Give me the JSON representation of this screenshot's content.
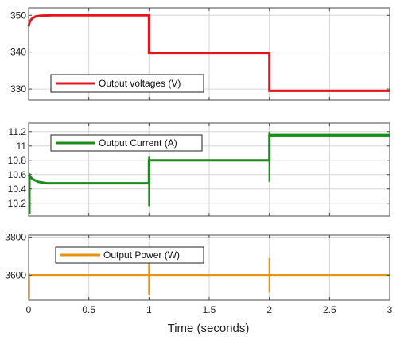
{
  "chart_data": [
    {
      "type": "line",
      "x_range": [
        0,
        3
      ],
      "ylim": [
        327,
        352
      ],
      "y_ticks": [
        330,
        340,
        350
      ],
      "grid": true,
      "legend_placement": "bottom-left",
      "color": "#e8141c",
      "series": [
        {
          "name": "Output voltages (V)",
          "points": [
            [
              0,
              347
            ],
            [
              0.01,
              348.3
            ],
            [
              0.03,
              349.2
            ],
            [
              0.06,
              349.7
            ],
            [
              0.1,
              349.9
            ],
            [
              0.2,
              350
            ],
            [
              1.0,
              350
            ],
            [
              1.0,
              339.8
            ],
            [
              2.0,
              339.8
            ],
            [
              2.0,
              329.5
            ],
            [
              3.0,
              329.5
            ]
          ]
        }
      ]
    },
    {
      "type": "line",
      "x_range": [
        0,
        3
      ],
      "ylim": [
        10.02,
        11.32
      ],
      "y_ticks": [
        10.2,
        10.4,
        10.6,
        10.8,
        11,
        11.2
      ],
      "grid": true,
      "legend_placement": "top-left",
      "color": "#1a8c1a",
      "series": [
        {
          "name": "Output Current (A)",
          "points": [
            [
              0,
              10.6
            ],
            [
              0.03,
              10.54
            ],
            [
              0.08,
              10.5
            ],
            [
              0.15,
              10.48
            ],
            [
              1.0,
              10.48
            ],
            [
              1.0,
              10.8
            ],
            [
              2.0,
              10.8
            ],
            [
              2.0,
              11.15
            ],
            [
              3.0,
              11.15
            ]
          ]
        }
      ]
    },
    {
      "type": "line",
      "x_range": [
        0,
        3
      ],
      "ylim": [
        3470,
        3810
      ],
      "y_ticks": [
        3600,
        3800
      ],
      "grid": true,
      "legend_placement": "top-left",
      "color": "#e8900f",
      "series": [
        {
          "name": "Output Power (W)",
          "points": [
            [
              0,
              3600
            ],
            [
              3.0,
              3600
            ]
          ]
        }
      ]
    }
  ],
  "x_axis": {
    "label": "Time (seconds)",
    "ticks": [
      0,
      0.5,
      1,
      1.5,
      2,
      2.5,
      3
    ],
    "tick_labels": [
      "0",
      "0.5",
      "1",
      "1.5",
      "2",
      "2.5",
      "3"
    ]
  }
}
